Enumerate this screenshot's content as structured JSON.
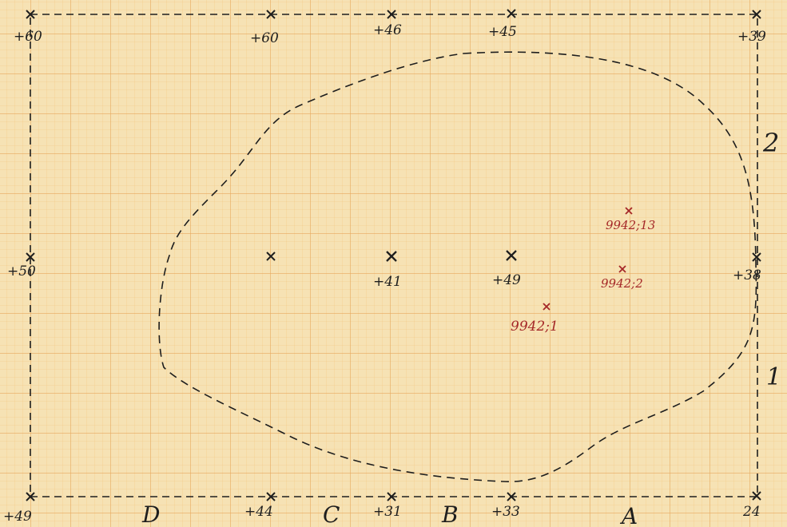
{
  "sheet": {
    "paper_color": "#f6e2b4",
    "grid_minor_color": "#f1b968",
    "grid_major_color": "#e39a4a",
    "ink_color": "#1e1e1e",
    "red_ink_color": "#a52828"
  },
  "survey_points": [
    {
      "id": "p1",
      "label": "+60"
    },
    {
      "id": "p2",
      "label": "+60"
    },
    {
      "id": "p3",
      "label": "+46"
    },
    {
      "id": "p4",
      "label": "+45"
    },
    {
      "id": "p5",
      "label": "+39"
    },
    {
      "id": "p6",
      "label": "+50"
    },
    {
      "id": "p7",
      "label": ""
    },
    {
      "id": "p8",
      "label": "+41"
    },
    {
      "id": "p9",
      "label": "+49"
    },
    {
      "id": "p10",
      "label": "+38"
    },
    {
      "id": "p11",
      "label": "+49"
    },
    {
      "id": "p12",
      "label": "+44"
    },
    {
      "id": "p13",
      "label": "+31"
    },
    {
      "id": "p14",
      "label": "+33"
    },
    {
      "id": "p15",
      "label": "24"
    }
  ],
  "finds": [
    {
      "id": "f1",
      "label": "9942;13"
    },
    {
      "id": "f2",
      "label": "9942;2"
    },
    {
      "id": "f3",
      "label": "9942;1"
    }
  ],
  "row_labels": [
    "2",
    "1"
  ],
  "column_labels": [
    "D",
    "C",
    "B",
    "A"
  ]
}
